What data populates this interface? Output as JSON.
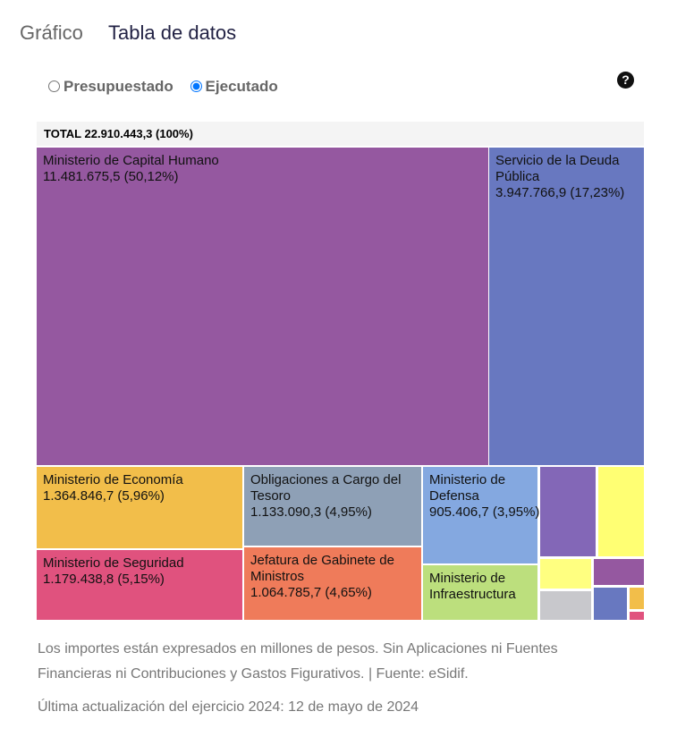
{
  "tabs": [
    "Gráfico",
    "Tabla de datos"
  ],
  "radios": [
    {
      "label": "Presupuestado",
      "checked": false
    },
    {
      "label": "Ejecutado",
      "checked": true
    }
  ],
  "help_icon": "question-circle-icon",
  "chart_data": {
    "type": "treemap",
    "total_label": "TOTAL 22.910.443,3 (100%)",
    "total": 22910443.3,
    "items": [
      {
        "name": "Ministerio de Capital Humano",
        "value": "11.481.675,5",
        "pct": "50,12%",
        "color": "#9558a0"
      },
      {
        "name": "Servicio de la Deuda Pública",
        "value": "3.947.766,9",
        "pct": "17,23%",
        "color": "#6878c0"
      },
      {
        "name": "Ministerio de Economía",
        "value": "1.364.846,7",
        "pct": "5,96%",
        "color": "#f2be4a"
      },
      {
        "name": "Obligaciones a Cargo del Tesoro",
        "value": "1.133.090,3",
        "pct": "4,95%",
        "color": "#8ea0b6"
      },
      {
        "name": "Ministerio de Defensa",
        "value": "905.406,7",
        "pct": "3,95%",
        "color": "#84a8e0"
      },
      {
        "name": "Ministerio de Seguridad",
        "value": "1.179.438,8",
        "pct": "5,15%",
        "color": "#e0527e"
      },
      {
        "name": "Jefatura de Gabinete de Ministros",
        "value": "1.064.785,7",
        "pct": "4,65%",
        "color": "#ef7b5a"
      },
      {
        "name": "Ministerio de Infraestructura",
        "value": "",
        "pct": "",
        "color": "#bcdf7d"
      }
    ],
    "unlabeled_colors": [
      "#8367b7",
      "#ffff73",
      "#ffff80",
      "#9558a0",
      "#c8c8cc",
      "#6878c0",
      "#f2be4a",
      "#e0527e"
    ]
  },
  "footer": {
    "note": "Los importes están expresados en millones de pesos. Sin Aplicaciones ni Fuentes Financieras ni Contribuciones y Gastos Figurativos. | Fuente: eSidif.",
    "updated": "Última actualización del ejercicio 2024: 12 de mayo de 2024"
  }
}
